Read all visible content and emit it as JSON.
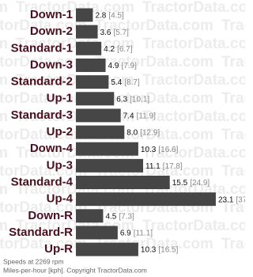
{
  "chart_data": {
    "type": "bar",
    "orientation": "horizontal",
    "watermark": "TractorData.com",
    "categories": [
      "Down-1",
      "Down-2",
      "Standard-1",
      "Down-3",
      "Standard-2",
      "Up-1",
      "Standard-3",
      "Up-2",
      "Down-4",
      "Up-3",
      "Standard-4",
      "Up-4",
      "Down-R",
      "Standard-R",
      "Up-R"
    ],
    "values": [
      2.8,
      3.6,
      4.2,
      4.9,
      5.4,
      6.3,
      7.4,
      8.0,
      10.3,
      11.1,
      15.5,
      23.1,
      4.5,
      6.9,
      10.3
    ],
    "value_labels": [
      "2.8",
      "3.6",
      "4.2",
      "4.9",
      "5.4",
      "6.3",
      "7.4",
      "8.0",
      "10.3",
      "11.1",
      "15.5",
      "23.1",
      "4.5",
      "6.9",
      "10.3"
    ],
    "kph_labels": [
      "[4.5]",
      "[5.7]",
      "[6.7]",
      "[7.9]",
      "[8.7]",
      "[10.1]",
      "[11.9]",
      "[12.9]",
      "[16.6]",
      "[17.8]",
      "[24.9]",
      "[37.2]",
      "[7.3]",
      "[11.1]",
      "[16.5]"
    ],
    "color": "#464646",
    "footnotes": [
      "Speeds at 2269 rpm",
      "Miles-per-hour [kph]. Copyright TractorData.com"
    ]
  }
}
